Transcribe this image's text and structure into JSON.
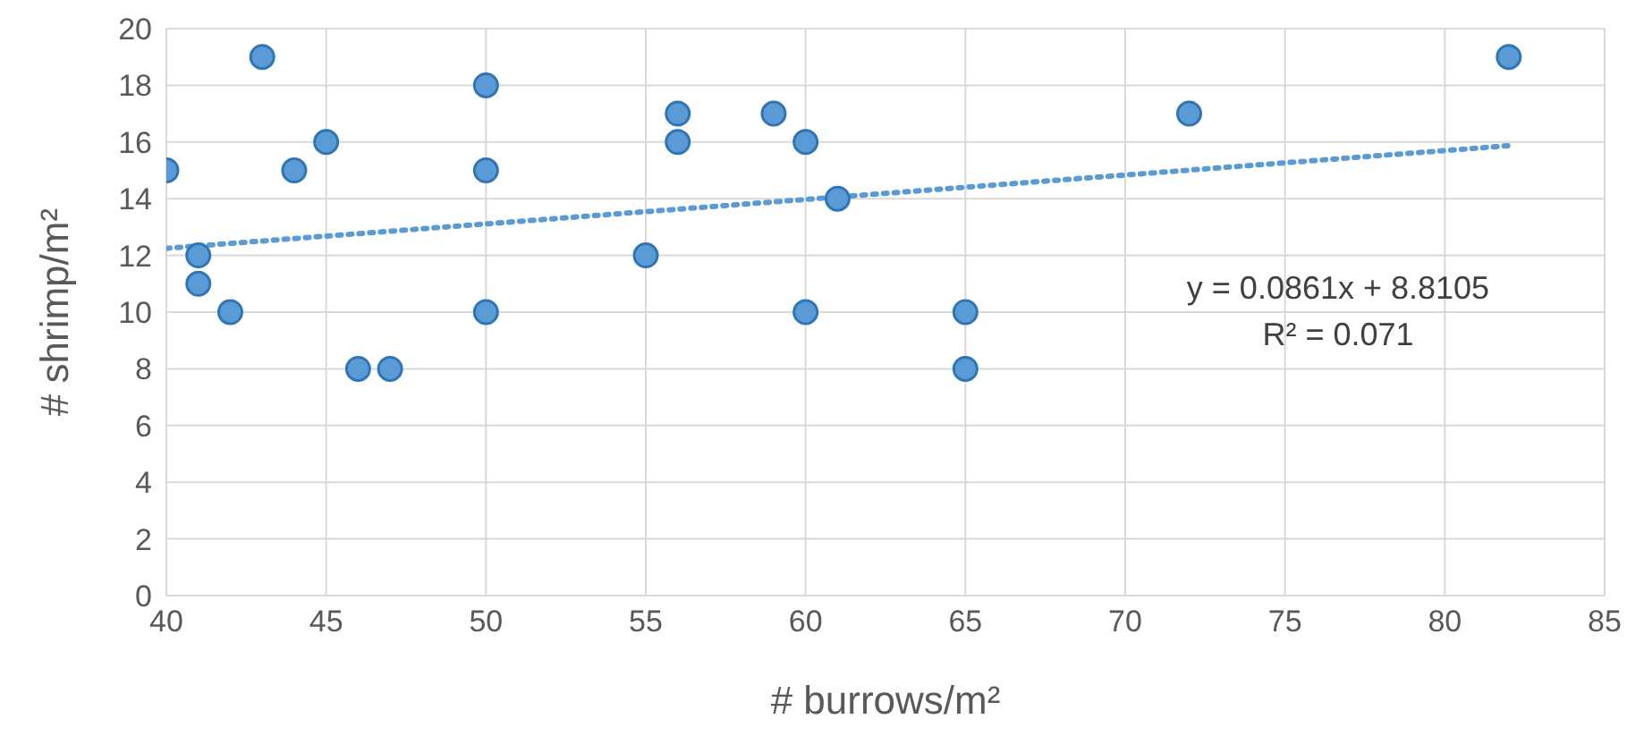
{
  "chart_data": {
    "type": "scatter",
    "xlabel": "# burrows/m²",
    "ylabel": "# shrimp/m²",
    "xlim": [
      40,
      85
    ],
    "xticks": [
      40,
      45,
      50,
      55,
      60,
      65,
      70,
      75,
      80,
      85
    ],
    "ylim": [
      0,
      20
    ],
    "yticks": [
      0,
      2,
      4,
      6,
      8,
      10,
      12,
      14,
      16,
      18,
      20
    ],
    "grid": true,
    "legend": false,
    "series": [
      {
        "color": "#5b9bd5",
        "marker": "circle",
        "x": [
          40,
          41,
          41,
          42,
          43,
          44,
          45,
          46,
          47,
          50,
          50,
          50,
          55,
          56,
          56,
          59,
          60,
          60,
          61,
          65,
          65,
          72,
          82
        ],
        "values": [
          15,
          12,
          11,
          10,
          19,
          15,
          16,
          8,
          8,
          18,
          15,
          10,
          12,
          17,
          16,
          17,
          16,
          10,
          14,
          10,
          8,
          17,
          19
        ]
      },
      {
        "type": "line",
        "color": "#5b9bd5",
        "line_style": "dotted",
        "marker": "none",
        "x": [
          40,
          82
        ],
        "values": [
          12.25,
          15.87
        ]
      }
    ],
    "annotations": [
      "y = 0.0861x + 8.8105",
      "R² = 0.071"
    ]
  }
}
